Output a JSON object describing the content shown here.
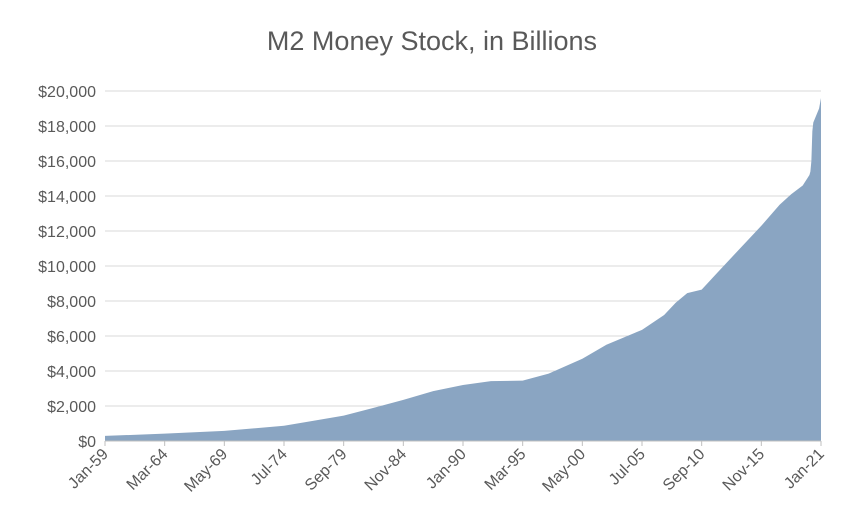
{
  "chart_data": {
    "type": "area",
    "title": "M2 Money Stock, in Billions",
    "xlabel": "",
    "ylabel": "",
    "ylim": [
      0,
      20000
    ],
    "grid": true,
    "legend": "none",
    "color": "#8aa5c2",
    "y_ticks": [
      0,
      2000,
      4000,
      6000,
      8000,
      10000,
      12000,
      14000,
      16000,
      18000,
      20000
    ],
    "y_tick_labels": [
      "$0",
      "$2,000",
      "$4,000",
      "$6,000",
      "$8,000",
      "$10,000",
      "$12,000",
      "$14,000",
      "$16,000",
      "$18,000",
      "$20,000"
    ],
    "x_tick_labels": [
      "Jan-59",
      "Mar-64",
      "May-69",
      "Jul-74",
      "Sep-79",
      "Nov-84",
      "Jan-90",
      "Mar-95",
      "May-00",
      "Jul-05",
      "Sep-10",
      "Nov-15",
      "Jan-21"
    ],
    "x_tick_dates": [
      "1959-01",
      "1964-03",
      "1969-05",
      "1974-07",
      "1979-09",
      "1984-11",
      "1990-01",
      "1995-03",
      "2000-05",
      "2005-07",
      "2010-09",
      "2015-11",
      "2021-01"
    ],
    "series": [
      {
        "x": [
          "1959-01",
          "1964-03",
          "1969-05",
          "1974-07",
          "1977-01",
          "1979-09",
          "1982-01",
          "1984-11",
          "1987-06",
          "1990-01",
          "1992-06",
          "1995-03",
          "1997-06",
          "2000-05",
          "2002-06",
          "2005-07",
          "2007-06",
          "2008-06",
          "2009-06",
          "2010-09",
          "2012-01",
          "2013-06",
          "2015-11",
          "2017-06",
          "2018-06",
          "2019-06",
          "2020-01",
          "2020-02",
          "2020-03",
          "2020-04",
          "2020-05",
          "2020-08",
          "2020-11",
          "2021-01"
        ],
        "values": [
          290,
          420,
          580,
          870,
          1150,
          1450,
          1850,
          2350,
          2850,
          3200,
          3420,
          3450,
          3850,
          4700,
          5500,
          6350,
          7200,
          7900,
          8450,
          8650,
          9600,
          10600,
          12300,
          13500,
          14100,
          14600,
          15200,
          15400,
          16000,
          17700,
          18200,
          18600,
          19000,
          19600
        ]
      }
    ]
  }
}
